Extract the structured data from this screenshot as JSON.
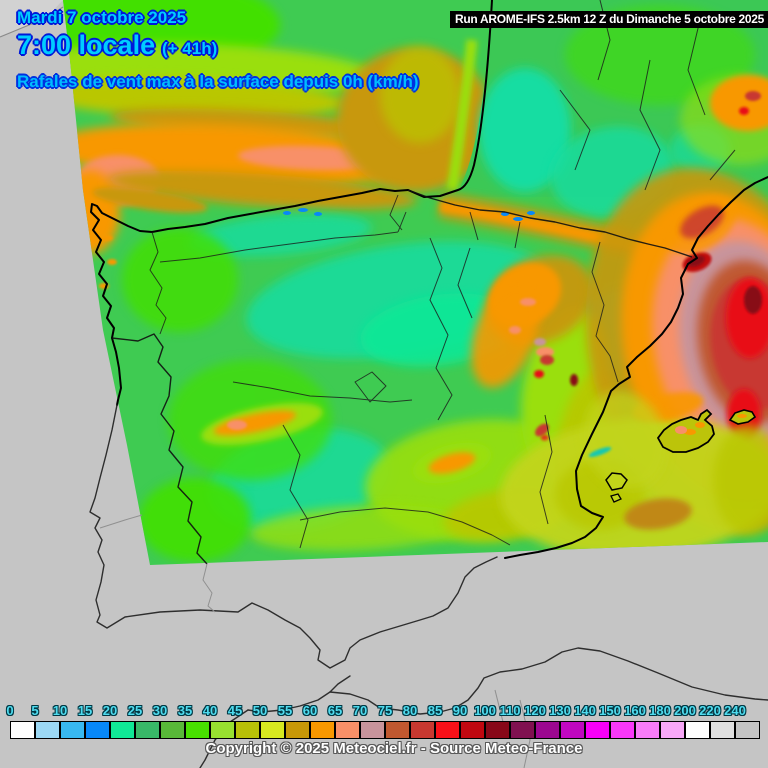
{
  "header": {
    "date_line": "Mardi 7 octobre 2025",
    "time_line": "7:00 locale",
    "offset": "(+ 41h)",
    "variable_line": "Rafales de vent max à la surface depuis 0h (km/h)",
    "run_info": "Run AROME-IFS 2.5km 12 Z du Dimanche 5 octobre 2025"
  },
  "footer": {
    "copyright": "Copyright © 2025 Meteociel.fr - Source Meteo-France"
  },
  "map": {
    "model": "AROME-IFS 2.5km",
    "variable": "Rafales de vent max à la surface depuis 0h",
    "unit": "km/h",
    "sea_color": "#C5C5C5",
    "outside_land_color": "#D2D2D2",
    "title_color": "#00CCFF",
    "title_outline_color": "#0018D8"
  },
  "scale": {
    "unit": "km/h",
    "stops": [
      {
        "label": "0",
        "color": "#FFFFFF"
      },
      {
        "label": "5",
        "color": "#9CD8F4"
      },
      {
        "label": "10",
        "color": "#38B8F0"
      },
      {
        "label": "15",
        "color": "#0888F8"
      },
      {
        "label": "20",
        "color": "#10E896"
      },
      {
        "label": "25",
        "color": "#38B868"
      },
      {
        "label": "30",
        "color": "#58B838"
      },
      {
        "label": "35",
        "color": "#48E000"
      },
      {
        "label": "40",
        "color": "#98E030"
      },
      {
        "label": "45",
        "color": "#B8C008"
      },
      {
        "label": "50",
        "color": "#D8E820"
      },
      {
        "label": "55",
        "color": "#C89808"
      },
      {
        "label": "60",
        "color": "#F89800"
      },
      {
        "label": "65",
        "color": "#F89068"
      },
      {
        "label": "70",
        "color": "#C8949C"
      },
      {
        "label": "75",
        "color": "#C05830"
      },
      {
        "label": "80",
        "color": "#C83830"
      },
      {
        "label": "85",
        "color": "#F81018"
      },
      {
        "label": "90",
        "color": "#C00810"
      },
      {
        "label": "100",
        "color": "#880818"
      },
      {
        "label": "110",
        "color": "#801050"
      },
      {
        "label": "120",
        "color": "#9C0890"
      },
      {
        "label": "130",
        "color": "#C008C0"
      },
      {
        "label": "140",
        "color": "#F800F8"
      },
      {
        "label": "150",
        "color": "#F838F8"
      },
      {
        "label": "160",
        "color": "#F87CF8"
      },
      {
        "label": "180",
        "color": "#F8A8F8"
      },
      {
        "label": "200",
        "color": "#FFFFFF"
      },
      {
        "label": "220",
        "color": "#E0E0E0"
      },
      {
        "label": "240",
        "color": "#C4C4C4"
      }
    ]
  }
}
